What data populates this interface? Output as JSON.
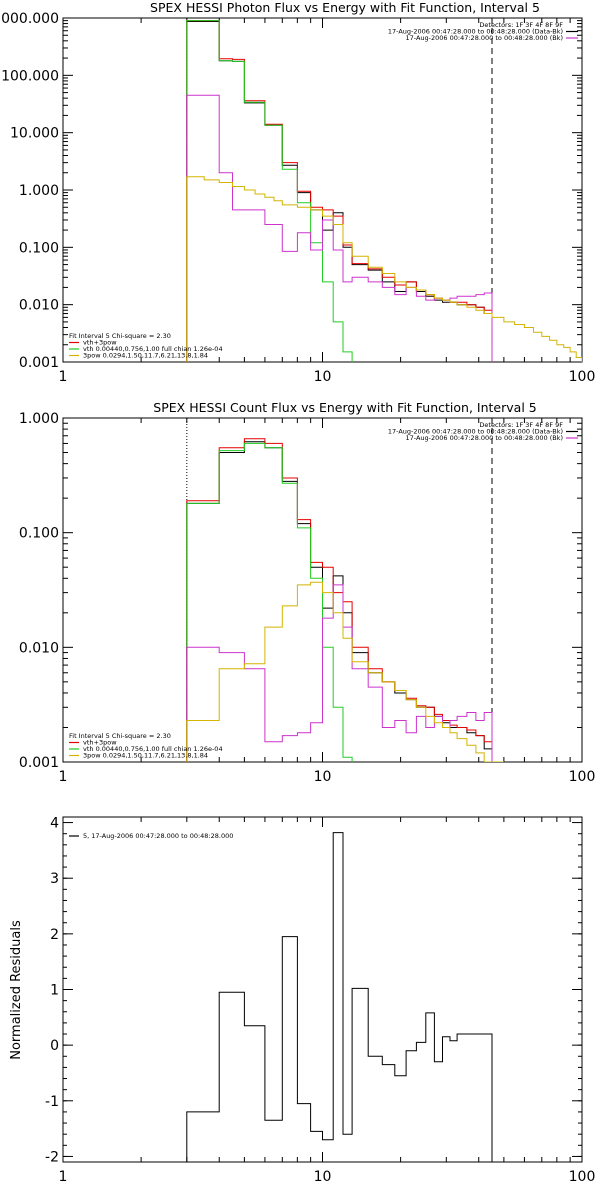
{
  "chart_data": [
    {
      "type": "line",
      "title": "SPEX HESSI Photon Flux vs Energy with Fit Function, Interval 5",
      "xlabel": "",
      "ylabel": "",
      "x_scale": "log",
      "y_scale": "log",
      "xlim": [
        1,
        100
      ],
      "ylim": [
        0.001,
        1000
      ],
      "x_tick_labels": [
        "1",
        "10",
        "100"
      ],
      "y_tick_values": [
        0.001,
        0.01,
        0.1,
        1,
        10,
        100,
        1000
      ],
      "y_tick_labels": [
        "0.001",
        "0.010",
        "0.100",
        "1.000",
        "10.000",
        "100.000",
        "1000.000"
      ],
      "vlines": [
        {
          "x": 3,
          "style": "dotted"
        },
        {
          "x": 45,
          "style": "dashed"
        }
      ],
      "legend_right": [
        {
          "text": "Detectors: 1F 3F 4F 8F 9F",
          "color": ""
        },
        {
          "text": "17-Aug-2006 00:47:28.000 to 00:48:28.000 (Data-Bk)",
          "color": "#000000"
        },
        {
          "text": "17-Aug-2006 00:47:28.000 to 00:48:28.000 (Bk)",
          "color": "#cc33cc"
        }
      ],
      "legend_left": [
        {
          "text": "Fit Interval 5   Chi-square = 2.30",
          "color": ""
        },
        {
          "text": "vth+3pow",
          "color": "#e60000"
        },
        {
          "text": "vth 0.00440,0.756,1.00  full chian 1.26e-04",
          "color": "#22cc22"
        },
        {
          "text": "3pow 0.0294,1.50,11.7,6.21,13.8,1.84",
          "color": "#d4b400"
        }
      ],
      "series": [
        {
          "color": "#000000",
          "edges": [
            3,
            3.5,
            4,
            4.5,
            5,
            5.5,
            6,
            6.5,
            7,
            8,
            9,
            10,
            11,
            12,
            13,
            15,
            17,
            19,
            21,
            23,
            25,
            27,
            29,
            31,
            33,
            36,
            39,
            42,
            45
          ],
          "values": [
            870,
            870,
            180,
            175,
            33,
            33,
            13.5,
            13.5,
            2.7,
            0.9,
            0.45,
            0.2,
            0.4,
            0.1,
            0.05,
            0.04,
            0.025,
            0.017,
            0.025,
            0.017,
            0.014,
            0.012,
            0.011,
            0.011,
            0.01,
            0.01,
            0.009,
            0.007
          ]
        },
        {
          "color": "#e60000",
          "edges": [
            3,
            3.5,
            4,
            4.5,
            5,
            5.5,
            6,
            6.5,
            7,
            8,
            9,
            10,
            11,
            12,
            13,
            15,
            17,
            19,
            21,
            23,
            25,
            27,
            29,
            31,
            33,
            36,
            39,
            42,
            45
          ],
          "values": [
            900,
            900,
            195,
            190,
            36,
            36,
            14,
            14,
            3,
            0.95,
            0.5,
            0.45,
            0.35,
            0.11,
            0.052,
            0.042,
            0.03,
            0.022,
            0.025,
            0.018,
            0.015,
            0.013,
            0.012,
            0.011,
            0.011,
            0.01,
            0.009,
            0.008
          ]
        },
        {
          "color": "#22cc22",
          "edges": [
            3,
            3.5,
            4,
            4.5,
            5,
            5.5,
            6,
            6.5,
            7,
            8,
            9,
            10,
            11,
            12,
            13
          ],
          "values": [
            900,
            900,
            180,
            175,
            34,
            34,
            13.5,
            13.5,
            2.3,
            0.6,
            0.12,
            0.025,
            0.005,
            0.0015
          ]
        },
        {
          "color": "#cc33cc",
          "edges": [
            3,
            3.5,
            4,
            4.5,
            5,
            5.5,
            6,
            6.5,
            7,
            8,
            9,
            10,
            11,
            12,
            13,
            15,
            17,
            19,
            21,
            23,
            25,
            27,
            29,
            31,
            33,
            36,
            39,
            42,
            45
          ],
          "values": [
            45,
            45,
            2,
            0.45,
            0.45,
            0.45,
            0.25,
            0.25,
            0.085,
            0.18,
            0.09,
            0.3,
            0.09,
            0.025,
            0.03,
            0.025,
            0.02,
            0.015,
            0.02,
            0.014,
            0.012,
            0.013,
            0.012,
            0.013,
            0.014,
            0.014,
            0.015,
            0.016
          ]
        },
        {
          "color": "#d4b400",
          "edges": [
            3,
            3.5,
            4,
            4.5,
            5,
            5.5,
            6,
            6.5,
            7,
            8,
            9,
            10,
            11,
            12,
            13,
            15,
            17,
            19,
            21,
            23,
            25,
            27,
            29,
            31,
            33,
            36,
            39,
            42,
            45,
            50,
            55,
            60,
            65,
            70,
            75,
            80,
            85,
            90,
            95,
            100
          ],
          "values": [
            1.7,
            1.5,
            1.35,
            1.15,
            1,
            0.85,
            0.75,
            0.65,
            0.55,
            0.5,
            0.45,
            0.35,
            0.25,
            0.12,
            0.07,
            0.045,
            0.035,
            0.025,
            0.02,
            0.018,
            0.015,
            0.013,
            0.012,
            0.011,
            0.01,
            0.009,
            0.008,
            0.007,
            0.006,
            0.005,
            0.0045,
            0.004,
            0.0033,
            0.0028,
            0.0024,
            0.002,
            0.0018,
            0.0015,
            0.0012
          ]
        }
      ]
    },
    {
      "type": "line",
      "title": "SPEX HESSI Count Flux vs Energy with Fit Function, Interval 5",
      "xlabel": "",
      "ylabel": "",
      "x_scale": "log",
      "y_scale": "log",
      "xlim": [
        1,
        100
      ],
      "ylim": [
        0.001,
        1
      ],
      "x_tick_labels": [
        "1",
        "10",
        "100"
      ],
      "y_tick_values": [
        0.001,
        0.01,
        0.1,
        1
      ],
      "y_tick_labels": [
        "0.001",
        "0.010",
        "0.100",
        "1.000"
      ],
      "vlines": [
        {
          "x": 3,
          "style": "dotted"
        },
        {
          "x": 45,
          "style": "dashed"
        }
      ],
      "legend_right": [
        {
          "text": "Detectors: 1F 3F 4F 8F 9F",
          "color": ""
        },
        {
          "text": "17-Aug-2006 00:47:28.000 to 00:48:28.000 (Data-Bk)",
          "color": "#000000"
        },
        {
          "text": "17-Aug-2006 00:47:28.000 to 00:48:28.000 (Bk)",
          "color": "#cc33cc"
        }
      ],
      "legend_left": [
        {
          "text": "Fit Interval 5   Chi-square = 2.30",
          "color": ""
        },
        {
          "text": "vth+3pow",
          "color": "#e60000"
        },
        {
          "text": "vth 0.00440,0.756,1.00  full chian 1.26e-04",
          "color": "#22cc22"
        },
        {
          "text": "3pow 0.0294,1.50,11.7,6.21,13.8,1.84",
          "color": "#d4b400"
        }
      ],
      "series": [
        {
          "color": "#000000",
          "edges": [
            3,
            4,
            5,
            6,
            7,
            8,
            9,
            10,
            11,
            12,
            13,
            15,
            17,
            19,
            21,
            23,
            25,
            27,
            29,
            31,
            33,
            36,
            39,
            42,
            45
          ],
          "values": [
            0.18,
            0.5,
            0.62,
            0.55,
            0.28,
            0.12,
            0.05,
            0.022,
            0.042,
            0.02,
            0.009,
            0.006,
            0.005,
            0.004,
            0.0035,
            0.003,
            0.003,
            0.0025,
            0.0022,
            0.002,
            0.002,
            0.0018,
            0.0017,
            0.0013
          ]
        },
        {
          "color": "#e60000",
          "edges": [
            3,
            4,
            5,
            6,
            7,
            8,
            9,
            10,
            11,
            12,
            13,
            15,
            17,
            19,
            21,
            23,
            25,
            27,
            29,
            31,
            33,
            36,
            39,
            42,
            45
          ],
          "values": [
            0.19,
            0.55,
            0.66,
            0.6,
            0.3,
            0.13,
            0.055,
            0.05,
            0.03,
            0.025,
            0.01,
            0.0065,
            0.005,
            0.0042,
            0.0036,
            0.0031,
            0.003,
            0.0026,
            0.0023,
            0.0021,
            0.002,
            0.0019,
            0.0017,
            0.0015
          ]
        },
        {
          "color": "#22cc22",
          "edges": [
            3,
            4,
            5,
            6,
            7,
            8,
            9,
            10,
            11,
            12,
            13
          ],
          "values": [
            0.18,
            0.52,
            0.6,
            0.55,
            0.27,
            0.11,
            0.04,
            0.01,
            0.003,
            0.0011
          ]
        },
        {
          "color": "#cc33cc",
          "edges": [
            3,
            4,
            5,
            6,
            7,
            8,
            9,
            10,
            11,
            12,
            13,
            15,
            17,
            19,
            21,
            23,
            25,
            27,
            29,
            31,
            33,
            36,
            39,
            42,
            45
          ],
          "values": [
            0.01,
            0.009,
            0.0065,
            0.0015,
            0.0017,
            0.0018,
            0.0022,
            0.018,
            0.035,
            0.015,
            0.0065,
            0.0045,
            0.002,
            0.0023,
            0.0018,
            0.0025,
            0.002,
            0.0025,
            0.002,
            0.0023,
            0.0025,
            0.0027,
            0.0023,
            0.0027
          ]
        },
        {
          "color": "#d4b400",
          "edges": [
            3,
            4,
            5,
            6,
            7,
            8,
            9,
            10,
            11,
            12,
            13,
            15,
            17,
            19,
            21,
            23,
            25,
            27,
            29,
            31,
            33,
            36,
            39,
            42,
            45,
            50
          ],
          "values": [
            0.0023,
            0.0065,
            0.0072,
            0.015,
            0.023,
            0.035,
            0.037,
            0.03,
            0.02,
            0.012,
            0.0075,
            0.006,
            0.005,
            0.0042,
            0.0035,
            0.003,
            0.0025,
            0.0022,
            0.002,
            0.0018,
            0.0016,
            0.0014,
            0.0012,
            0.001,
            0.0009
          ]
        }
      ]
    },
    {
      "type": "line",
      "title": "",
      "xlabel": "",
      "ylabel": "Normalized Residuals",
      "x_scale": "log",
      "y_scale": "linear",
      "xlim": [
        1,
        100
      ],
      "ylim": [
        -2.1,
        4.1
      ],
      "x_tick_labels": [
        "1",
        "10",
        "100"
      ],
      "y_tick_values": [
        -2,
        -1,
        0,
        1,
        2,
        3,
        4
      ],
      "y_tick_labels": [
        "-2",
        "-1",
        "0",
        "1",
        "2",
        "3",
        "4"
      ],
      "vlines": [],
      "legend_right": [],
      "legend_left": [
        {
          "text": "5, 17-Aug-2006 00:47:28.000 to 00:48:28.000",
          "color": "#000000"
        }
      ],
      "series": [
        {
          "color": "#000000",
          "edges": [
            3,
            3.5,
            4,
            4.5,
            5,
            5.5,
            6,
            6.5,
            7,
            8,
            9,
            10,
            11,
            12,
            13,
            15,
            17,
            19,
            21,
            23,
            25,
            27,
            29,
            31,
            33,
            36,
            39,
            42,
            45
          ],
          "values": [
            -1.2,
            -1.2,
            0.95,
            0.95,
            0.35,
            0.35,
            -1.35,
            -1.35,
            1.95,
            -1.05,
            -1.55,
            -1.7,
            3.82,
            -1.6,
            1.02,
            -0.2,
            -0.35,
            -0.55,
            -0.1,
            0.05,
            0.58,
            -0.3,
            0.15,
            0.08,
            0.2,
            0.2,
            0.2,
            0.2
          ]
        }
      ]
    }
  ]
}
